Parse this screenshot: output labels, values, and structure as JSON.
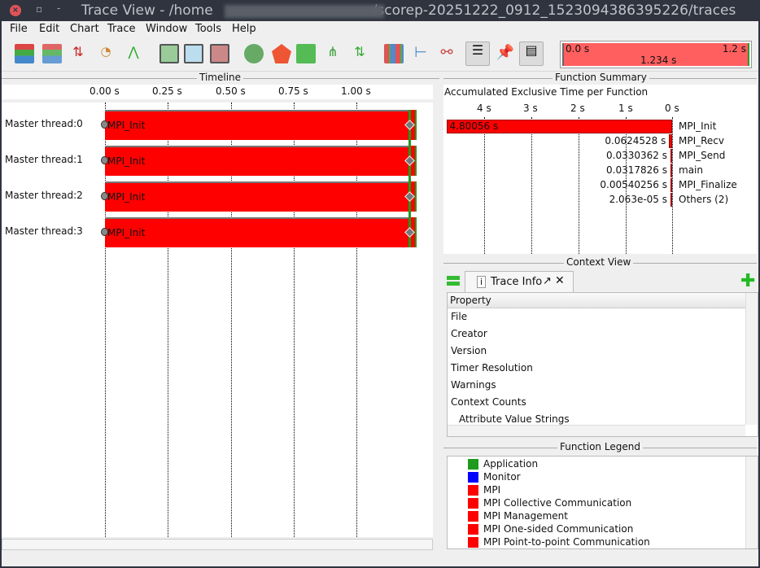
{
  "window": {
    "title_prefix": "Trace View - /home",
    "title_suffix": "/scorep-20251222_0912_1523094386395226/traces"
  },
  "menu": [
    "File",
    "Edit",
    "Chart",
    "Trace",
    "Window",
    "Tools",
    "Help"
  ],
  "time_selector": {
    "start": "0.0 s",
    "end": "1.2 s",
    "duration": "1.234 s"
  },
  "timeline": {
    "title": "Timeline",
    "ticks": [
      "0.00 s",
      "0.25 s",
      "0.50 s",
      "0.75 s",
      "1.00 s"
    ],
    "rows": [
      {
        "label": "Master thread:0",
        "func": "MPI_Init"
      },
      {
        "label": "Master thread:1",
        "func": "MPI_Init"
      },
      {
        "label": "Master thread:2",
        "func": "MPI_Init"
      },
      {
        "label": "Master thread:3",
        "func": "MPI_Init"
      }
    ]
  },
  "function_summary": {
    "title": "Function Summary",
    "subtitle": "Accumulated Exclusive Time per Function",
    "ticks": [
      "4 s",
      "3 s",
      "2 s",
      "1 s",
      "0 s"
    ],
    "rows": [
      {
        "name": "MPI_Init",
        "value": "4.80056 s",
        "seconds": 4.80056,
        "color": "#ff0000"
      },
      {
        "name": "MPI_Recv",
        "value": "0.0624528 s",
        "seconds": 0.0624528,
        "color": "#ff0000"
      },
      {
        "name": "MPI_Send",
        "value": "0.0330362 s",
        "seconds": 0.0330362,
        "color": "#ff0000"
      },
      {
        "name": "main",
        "value": "0.0317826 s",
        "seconds": 0.0317826,
        "color": "#1e8c1e"
      },
      {
        "name": "MPI_Finalize",
        "value": "0.00540256 s",
        "seconds": 0.00540256,
        "color": "#ff0000"
      },
      {
        "name": "Others (2)",
        "value": "2.063e-05 s",
        "seconds": 2.063e-05,
        "color": "#1f6e8c"
      }
    ]
  },
  "context_view": {
    "title": "Context View",
    "tab": "Trace Info",
    "column": "Property",
    "properties": [
      "File",
      "Creator",
      "Version",
      "Timer Resolution",
      "Warnings",
      "Context Counts",
      "Attribute Value Strings"
    ]
  },
  "function_legend": {
    "title": "Function Legend",
    "items": [
      {
        "label": "Application",
        "color": "#1e9b1e"
      },
      {
        "label": "Monitor",
        "color": "#0000ff"
      },
      {
        "label": "MPI",
        "color": "#ff0000"
      },
      {
        "label": "MPI Collective Communication",
        "color": "#ff0000"
      },
      {
        "label": "MPI Management",
        "color": "#ff0000"
      },
      {
        "label": "MPI One-sided Communication",
        "color": "#ff0000"
      },
      {
        "label": "MPI Point-to-point Communication",
        "color": "#ff0000"
      }
    ]
  }
}
